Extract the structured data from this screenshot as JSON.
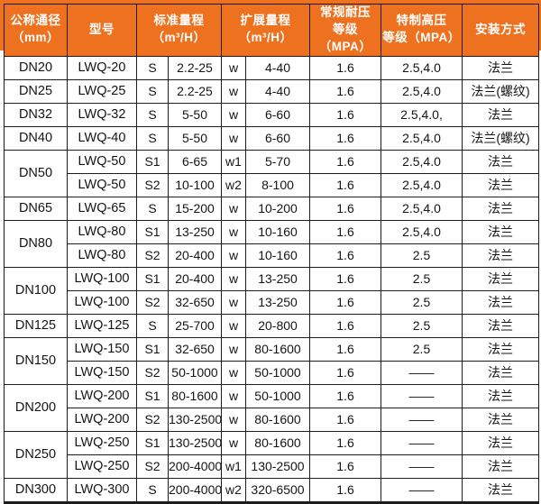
{
  "accent_color": "#ee7120",
  "grid_color": "#1c1c1c",
  "header_text_color": "#ffffff",
  "table": {
    "header": {
      "nominal_diameter": "公称通径\n（mm）",
      "model": "型号",
      "standard_range": "标准量程\n（m³/H）",
      "extended_range": "扩展量程\n（m³/H）",
      "regular_pressure": "常规耐压\n等级（MPA）",
      "special_pressure": "特制高压\n等级（MPA）",
      "installation": "安装方式"
    },
    "rows": [
      {
        "dn": "DN20",
        "dnspan": 1,
        "model": "LWQ-20",
        "s": "S",
        "std": "2.2-25",
        "w": "w",
        "ext": "4-40",
        "reg": "1.6",
        "high": "2.5,4.0",
        "install": "法兰"
      },
      {
        "dn": "DN25",
        "dnspan": 1,
        "model": "LWQ-25",
        "s": "S",
        "std": "2.2-25",
        "w": "w",
        "ext": "4-40",
        "reg": "1.6",
        "high": "2.5,4.0",
        "install": "法兰(螺纹)"
      },
      {
        "dn": "DN32",
        "dnspan": 1,
        "model": "LWQ-32",
        "s": "S",
        "std": "5-50",
        "w": "w",
        "ext": "6-60",
        "reg": "1.6",
        "high": "2.5,4.0,",
        "install": "法兰"
      },
      {
        "dn": "DN40",
        "dnspan": 1,
        "model": "LWQ-40",
        "s": "S",
        "std": "5-50",
        "w": "w",
        "ext": "6-60",
        "reg": "1.6",
        "high": "2.5,4.0",
        "install": "法兰(螺纹)"
      },
      {
        "dn": "DN50",
        "dnspan": 2,
        "model": "LWQ-50",
        "s": "S1",
        "std": "6-65",
        "w": "w1",
        "ext": "5-70",
        "reg": "1.6",
        "high": "2.5,4.0",
        "install": "法兰"
      },
      {
        "dn": null,
        "model": "LWQ-50",
        "s": "S2",
        "std": "10-100",
        "w": "w2",
        "ext": "8-100",
        "reg": "1.6",
        "high": "2.5,4.0",
        "install": "法兰"
      },
      {
        "dn": "DN65",
        "dnspan": 1,
        "model": "LWQ-65",
        "s": "S",
        "std": "15-200",
        "w": "w",
        "ext": "10-200",
        "reg": "1.6",
        "high": "2.5,4.0",
        "install": "法兰"
      },
      {
        "dn": "DN80",
        "dnspan": 2,
        "model": "LWQ-80",
        "s": "S1",
        "std": "13-250",
        "w": "w",
        "ext": "10-160",
        "reg": "1.6",
        "high": "2.5,4.0",
        "install": "法兰"
      },
      {
        "dn": null,
        "model": "LWQ-80",
        "s": "S2",
        "std": "20-400",
        "w": "w",
        "ext": "10-160",
        "reg": "1.6",
        "high": "2.5",
        "install": "法兰"
      },
      {
        "dn": "DN100",
        "dnspan": 2,
        "model": "LWQ-100",
        "s": "S1",
        "std": "20-400",
        "w": "w",
        "ext": "13-250",
        "reg": "1.6",
        "high": "2.5",
        "install": "法兰"
      },
      {
        "dn": null,
        "model": "LWQ-100",
        "s": "S2",
        "std": "32-650",
        "w": "w",
        "ext": "13-250",
        "reg": "1.6",
        "high": "2.5",
        "install": "法兰"
      },
      {
        "dn": "DN125",
        "dnspan": 1,
        "model": "LWQ-125",
        "s": "S",
        "std": "25-700",
        "w": "w",
        "ext": "20-800",
        "reg": "1.6",
        "high": "2.5",
        "install": "法兰"
      },
      {
        "dn": "DN150",
        "dnspan": 2,
        "model": "LWQ-150",
        "s": "S1",
        "std": "32-650",
        "w": "w",
        "ext": "80-1600",
        "reg": "1.6",
        "high": "2.5",
        "install": "法兰"
      },
      {
        "dn": null,
        "model": "LWQ-150",
        "s": "S2",
        "std": "50-1000",
        "w": "w",
        "ext": "50-1000",
        "reg": "1.6",
        "high": "——",
        "install": "法兰"
      },
      {
        "dn": "DN200",
        "dnspan": 2,
        "model": "LWQ-200",
        "s": "S1",
        "std": "80-1600",
        "w": "w",
        "ext": "50-1000",
        "reg": "1.6",
        "high": "——",
        "install": "法兰"
      },
      {
        "dn": null,
        "model": "LWQ-200",
        "s": "S2",
        "std": "130-2500",
        "w": "w",
        "ext": "80-1600",
        "reg": "1.6",
        "high": "——",
        "install": "法兰"
      },
      {
        "dn": "DN250",
        "dnspan": 2,
        "model": "LWQ-250",
        "s": "S1",
        "std": "130-2500",
        "w": "w",
        "ext": "80-1600",
        "reg": "1.6",
        "high": "——",
        "install": "法兰"
      },
      {
        "dn": null,
        "model": "LWQ-250",
        "s": "S2",
        "std": "200-4000",
        "w": "w1",
        "ext": "130-2500",
        "reg": "1.6",
        "high": "——",
        "install": "法兰"
      },
      {
        "dn": "DN300",
        "dnspan": 1,
        "model": "LWQ-300",
        "s": "S",
        "std": "200-4000",
        "w": "w2",
        "ext": "320-6500",
        "reg": "1.6",
        "high": "——",
        "install": "法兰"
      }
    ]
  }
}
